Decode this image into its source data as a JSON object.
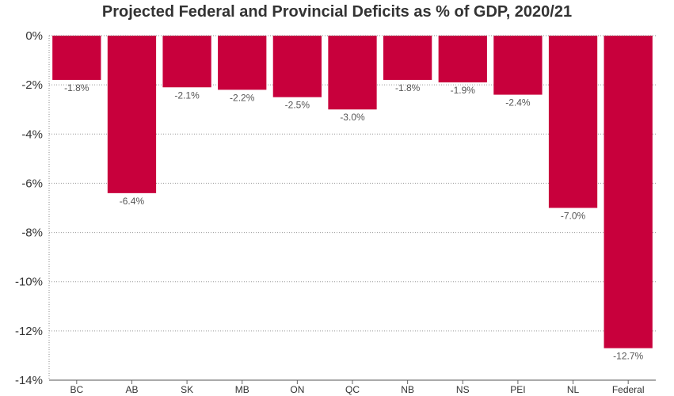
{
  "chart_data": {
    "type": "bar",
    "title": "Projected Federal and Provincial Deficits as % of GDP, 2020/21",
    "categories": [
      "BC",
      "AB",
      "SK",
      "MB",
      "ON",
      "QC",
      "NB",
      "NS",
      "PEI",
      "NL",
      "Federal"
    ],
    "values": [
      -1.8,
      -6.4,
      -2.1,
      -2.2,
      -2.5,
      -3.0,
      -1.8,
      -1.9,
      -2.4,
      -7.0,
      -12.7
    ],
    "value_labels": [
      "-1.8%",
      "-6.4%",
      "-2.1%",
      "-2.2%",
      "-2.5%",
      "-3.0%",
      "-1.8%",
      "-1.9%",
      "-2.4%",
      "-7.0%",
      "-12.7%"
    ],
    "y_ticks": [
      0,
      -2,
      -4,
      -6,
      -8,
      -10,
      -12,
      -14
    ],
    "y_tick_labels": [
      "0%",
      "-2%",
      "-4%",
      "-6%",
      "-8%",
      "-10%",
      "-12%",
      "-14%"
    ],
    "ylim": [
      -14,
      0
    ],
    "xlabel": "",
    "ylabel": "",
    "grid": true,
    "bar_color": "#c8003c"
  }
}
